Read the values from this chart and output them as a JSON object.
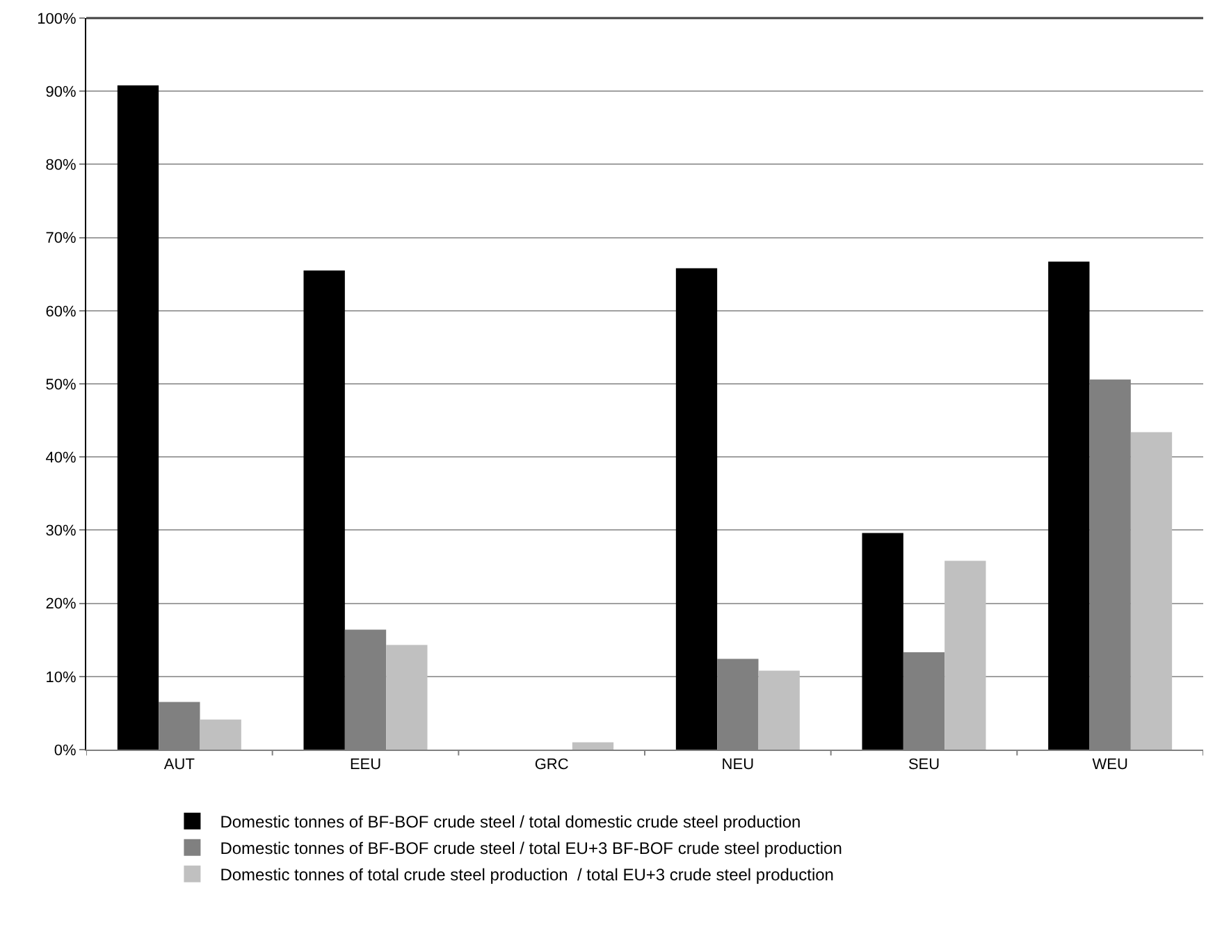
{
  "chart_data": {
    "type": "bar",
    "categories": [
      "AUT",
      "EEU",
      "GRC",
      "NEU",
      "SEU",
      "WEU"
    ],
    "series": [
      {
        "name": "Domestic tonnes of BF-BOF crude steel / total domestic crude steel production",
        "color": "#000000",
        "values": [
          90.8,
          65.5,
          0,
          65.8,
          29.6,
          66.7
        ]
      },
      {
        "name": "Domestic tonnes of BF-BOF crude steel / total EU+3 BF-BOF crude steel production",
        "color": "#808080",
        "values": [
          6.5,
          16.4,
          0,
          12.4,
          13.3,
          50.6
        ]
      },
      {
        "name": "Domestic tonnes of total crude steel production  / total EU+3 crude steel production",
        "color": "#c0c0c0",
        "values": [
          4.1,
          14.3,
          1.0,
          10.8,
          25.8,
          43.4
        ]
      }
    ],
    "ylim": [
      0,
      100
    ],
    "yticks": [
      {
        "value": 0,
        "label": "0%"
      },
      {
        "value": 10,
        "label": "10%"
      },
      {
        "value": 20,
        "label": "20%"
      },
      {
        "value": 30,
        "label": "30%"
      },
      {
        "value": 40,
        "label": "40%"
      },
      {
        "value": 50,
        "label": "50%"
      },
      {
        "value": 60,
        "label": "60%"
      },
      {
        "value": 70,
        "label": "70%"
      },
      {
        "value": 80,
        "label": "80%"
      },
      {
        "value": 90,
        "label": "90%"
      },
      {
        "value": 100,
        "label": "100%"
      }
    ],
    "grid": "y",
    "legend": "bottom"
  }
}
